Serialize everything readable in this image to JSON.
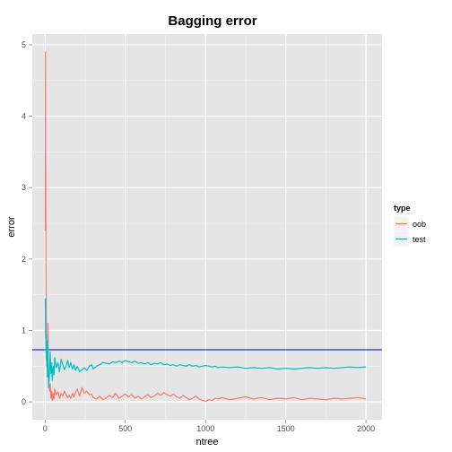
{
  "chart_data": {
    "type": "line",
    "title": "Bagging error",
    "xlabel": "ntree",
    "ylabel": "error",
    "xlim": [
      -80,
      2100
    ],
    "ylim": [
      -0.25,
      5.15
    ],
    "xticks": [
      0,
      500,
      1000,
      1500,
      2000
    ],
    "xtick_labels": [
      "0",
      "500",
      "1000",
      "1500",
      "2000"
    ],
    "yticks": [
      0,
      1,
      2,
      3,
      4,
      5
    ],
    "ytick_labels": [
      "0",
      "1",
      "2",
      "3",
      "4",
      "5"
    ],
    "grid": true,
    "legend_title": "type",
    "legend_position": "right",
    "hline": {
      "y": 0.73,
      "color": "#0000cc"
    },
    "series": [
      {
        "name": "oob",
        "color": "#F8766D",
        "x": [
          1,
          2,
          3,
          4,
          5,
          6,
          7,
          8,
          10,
          12,
          14,
          16,
          18,
          20,
          22,
          25,
          28,
          32,
          36,
          40,
          45,
          50,
          55,
          60,
          70,
          80,
          90,
          100,
          110,
          120,
          130,
          140,
          150,
          160,
          170,
          180,
          190,
          200,
          215,
          230,
          245,
          260,
          275,
          290,
          300,
          320,
          340,
          360,
          380,
          400,
          420,
          440,
          460,
          480,
          500,
          520,
          540,
          560,
          580,
          600,
          620,
          640,
          660,
          680,
          700,
          720,
          740,
          760,
          780,
          800,
          820,
          840,
          860,
          880,
          900,
          920,
          940,
          960,
          980,
          1000,
          1020,
          1040,
          1060,
          1080,
          1100,
          1150,
          1200,
          1250,
          1300,
          1350,
          1400,
          1450,
          1500,
          1550,
          1600,
          1650,
          1700,
          1750,
          1800,
          1850,
          1900,
          1950,
          2000
        ],
        "y": [
          2.4,
          4.9,
          3.5,
          3.0,
          2.0,
          1.6,
          1.3,
          1.0,
          0.8,
          0.55,
          0.7,
          0.45,
          1.1,
          0.5,
          0.3,
          0.2,
          0.15,
          0.25,
          0.05,
          0.15,
          0.02,
          0.12,
          0.04,
          0.18,
          0.1,
          0.14,
          0.05,
          0.12,
          0.08,
          0.15,
          0.1,
          0.06,
          0.09,
          0.05,
          0.12,
          0.07,
          0.14,
          0.18,
          0.08,
          0.2,
          0.12,
          0.15,
          0.1,
          0.11,
          0.06,
          0.04,
          0.08,
          0.03,
          0.05,
          0.09,
          0.06,
          0.12,
          0.05,
          0.08,
          0.11,
          0.07,
          0.1,
          0.05,
          0.08,
          0.04,
          0.07,
          0.1,
          0.06,
          0.08,
          0.12,
          0.09,
          0.13,
          0.1,
          0.08,
          0.11,
          0.07,
          0.05,
          0.09,
          0.06,
          0.03,
          0.05,
          0.08,
          0.04,
          0.02,
          0.01,
          0.03,
          0.02,
          0.05,
          0.04,
          0.06,
          0.03,
          0.05,
          0.07,
          0.04,
          0.06,
          0.03,
          0.05,
          0.04,
          0.06,
          0.03,
          0.05,
          0.04,
          0.03,
          0.05,
          0.04,
          0.05,
          0.06,
          0.04
        ]
      },
      {
        "name": "test",
        "color": "#00BFC4",
        "x": [
          1,
          2,
          3,
          4,
          5,
          6,
          7,
          8,
          10,
          12,
          14,
          16,
          18,
          20,
          22,
          25,
          28,
          32,
          36,
          40,
          45,
          50,
          55,
          60,
          70,
          80,
          90,
          100,
          110,
          120,
          130,
          140,
          150,
          160,
          170,
          180,
          190,
          200,
          215,
          230,
          245,
          260,
          275,
          290,
          300,
          320,
          340,
          360,
          380,
          400,
          420,
          440,
          460,
          480,
          500,
          520,
          540,
          560,
          580,
          600,
          620,
          640,
          660,
          680,
          700,
          720,
          740,
          760,
          780,
          800,
          820,
          840,
          860,
          880,
          900,
          920,
          940,
          960,
          980,
          1000,
          1020,
          1040,
          1060,
          1080,
          1100,
          1150,
          1200,
          1250,
          1300,
          1350,
          1400,
          1450,
          1500,
          1550,
          1600,
          1650,
          1700,
          1750,
          1800,
          1850,
          1900,
          1950,
          2000
        ],
        "y": [
          1.45,
          1.2,
          0.9,
          1.1,
          0.7,
          0.95,
          0.6,
          0.8,
          0.5,
          0.7,
          0.35,
          0.85,
          0.55,
          0.4,
          0.2,
          0.3,
          0.45,
          0.7,
          0.4,
          0.55,
          0.3,
          0.5,
          0.38,
          0.62,
          0.48,
          0.55,
          0.42,
          0.6,
          0.52,
          0.45,
          0.5,
          0.58,
          0.48,
          0.55,
          0.46,
          0.52,
          0.44,
          0.5,
          0.42,
          0.45,
          0.48,
          0.44,
          0.5,
          0.52,
          0.46,
          0.5,
          0.52,
          0.55,
          0.54,
          0.53,
          0.56,
          0.55,
          0.57,
          0.55,
          0.58,
          0.56,
          0.55,
          0.57,
          0.54,
          0.55,
          0.53,
          0.55,
          0.52,
          0.54,
          0.53,
          0.55,
          0.52,
          0.53,
          0.51,
          0.52,
          0.5,
          0.52,
          0.51,
          0.5,
          0.52,
          0.5,
          0.51,
          0.49,
          0.5,
          0.51,
          0.5,
          0.49,
          0.5,
          0.48,
          0.49,
          0.48,
          0.49,
          0.47,
          0.48,
          0.47,
          0.48,
          0.46,
          0.47,
          0.46,
          0.47,
          0.48,
          0.47,
          0.48,
          0.47,
          0.48,
          0.49,
          0.48,
          0.49
        ]
      }
    ]
  }
}
